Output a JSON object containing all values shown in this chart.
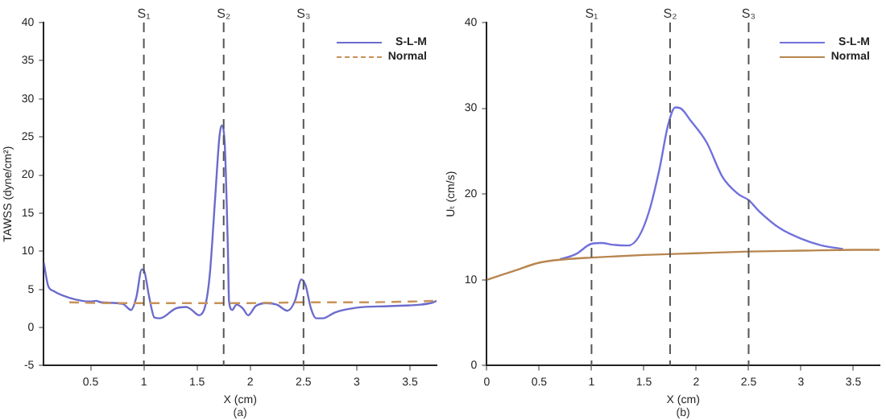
{
  "chart_data": [
    {
      "type": "line",
      "xlabel": "X (cm)",
      "ylabel": "TAWSS (dyne/cm²)",
      "annotations": [
        "(a)"
      ],
      "xlim": [
        0.06,
        3.75
      ],
      "ylim": [
        -5,
        40
      ],
      "xticks": [
        0.5,
        1,
        1.5,
        2,
        2.5,
        3,
        3.5
      ],
      "yticks": [
        -5,
        0,
        5,
        10,
        15,
        20,
        25,
        30,
        35,
        40
      ],
      "grid": false,
      "legend": "top right",
      "ref_lines": [
        {
          "axis": "x",
          "value": 1,
          "label": "S₁",
          "color": "#555555",
          "line_style": "dashed"
        },
        {
          "axis": "x",
          "value": 1.75,
          "label": "S₂",
          "color": "#555555",
          "line_style": "dashed"
        },
        {
          "axis": "x",
          "value": 2.5,
          "label": "S₃",
          "color": "#555555",
          "line_style": "dashed"
        }
      ],
      "series": [
        {
          "name": "S-L-M",
          "color": "#6b6bcc",
          "line_style": "solid",
          "x": [
            0.06,
            0.1,
            0.15,
            0.3,
            0.5,
            0.55,
            0.6,
            0.8,
            0.88,
            0.93,
            0.98,
            1.0,
            1.05,
            1.1,
            1.15,
            1.3,
            1.4,
            1.45,
            1.52,
            1.58,
            1.62,
            1.67,
            1.71,
            1.73,
            1.76,
            1.79,
            1.8,
            1.83,
            1.87,
            1.93,
            1.98,
            2.05,
            2.15,
            2.25,
            2.35,
            2.42,
            2.48,
            2.52,
            2.57,
            2.62,
            2.68,
            2.8,
            3.0,
            3.3,
            3.6,
            3.72,
            3.75
          ],
          "values": [
            8.5,
            5.5,
            4.8,
            3.9,
            3.4,
            3.5,
            3.3,
            3.1,
            2.3,
            4,
            7.6,
            7.5,
            4,
            1.3,
            1.2,
            2.5,
            2.7,
            2.3,
            1.6,
            3,
            7,
            17,
            25,
            26.5,
            24,
            10,
            3.5,
            2.3,
            3,
            2.5,
            1.6,
            2.8,
            3.2,
            3,
            2.2,
            3.5,
            6.3,
            5.5,
            2.5,
            1.2,
            1.2,
            2,
            2.6,
            2.8,
            3,
            3.3,
            3.5
          ]
        },
        {
          "name": "Normal",
          "color": "#c8925a",
          "line_style": "dashed",
          "x": [
            0.3,
            0.65,
            1,
            1.5,
            2,
            2.5,
            3,
            3.5,
            3.75
          ],
          "values": [
            3.3,
            3.2,
            3.2,
            3.2,
            3.2,
            3.3,
            3.3,
            3.4,
            3.5
          ]
        }
      ]
    },
    {
      "type": "line",
      "xlabel": "X (cm)",
      "ylabel": "Uₜ (cm/s)",
      "annotations": [
        "(b)"
      ],
      "xlim": [
        0,
        3.75
      ],
      "ylim": [
        0,
        40
      ],
      "xticks": [
        0,
        0.5,
        1,
        1.5,
        2,
        2.5,
        3,
        3.5
      ],
      "yticks": [
        0,
        10,
        20,
        30,
        40
      ],
      "grid": false,
      "legend": "top right",
      "ref_lines": [
        {
          "axis": "x",
          "value": 1,
          "label": "S₁",
          "color": "#555555",
          "line_style": "dashed"
        },
        {
          "axis": "x",
          "value": 1.75,
          "label": "S₂",
          "color": "#555555",
          "line_style": "dashed"
        },
        {
          "axis": "x",
          "value": 2.5,
          "label": "S₃",
          "color": "#555555",
          "line_style": "dashed"
        }
      ],
      "series": [
        {
          "name": "S-L-M",
          "color": "#7070dd",
          "line_style": "solid",
          "x": [
            0.7,
            0.85,
            1.0,
            1.1,
            1.2,
            1.35,
            1.45,
            1.55,
            1.65,
            1.73,
            1.8,
            1.85,
            1.95,
            2.1,
            2.25,
            2.4,
            2.5,
            2.6,
            2.8,
            3.0,
            3.2,
            3.4
          ],
          "values": [
            12.4,
            13,
            14.2,
            14.3,
            14.1,
            14,
            15,
            18,
            23,
            28,
            30.1,
            30,
            28.5,
            26,
            22,
            20,
            19.3,
            18,
            16,
            14.8,
            14,
            13.6
          ]
        },
        {
          "name": "Normal",
          "color": "#b8864f",
          "line_style": "solid",
          "x": [
            0,
            0.25,
            0.5,
            0.75,
            1,
            1.5,
            2,
            2.5,
            3,
            3.5,
            3.75
          ],
          "values": [
            10,
            11,
            12,
            12.4,
            12.6,
            12.9,
            13.1,
            13.3,
            13.4,
            13.5,
            13.5
          ]
        }
      ]
    }
  ]
}
